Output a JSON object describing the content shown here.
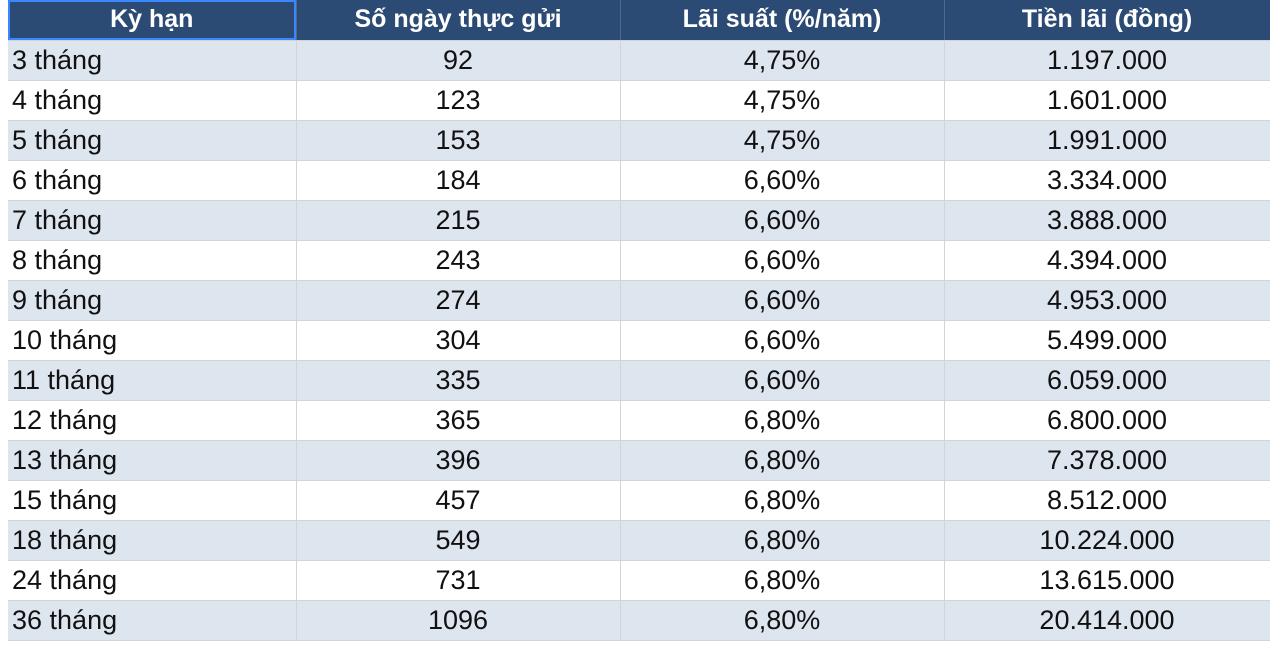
{
  "table": {
    "headers": [
      "Kỳ hạn",
      "Số ngày thực gửi",
      "Lãi suất (%/năm)",
      "Tiền lãi (đồng)"
    ],
    "rows": [
      {
        "term": "3 tháng",
        "days": "92",
        "rate": "4,75%",
        "interest": "1.197.000"
      },
      {
        "term": "4 tháng",
        "days": "123",
        "rate": "4,75%",
        "interest": "1.601.000"
      },
      {
        "term": "5 tháng",
        "days": "153",
        "rate": "4,75%",
        "interest": "1.991.000"
      },
      {
        "term": "6 tháng",
        "days": "184",
        "rate": "6,60%",
        "interest": "3.334.000"
      },
      {
        "term": "7 tháng",
        "days": "215",
        "rate": "6,60%",
        "interest": "3.888.000"
      },
      {
        "term": "8 tháng",
        "days": "243",
        "rate": "6,60%",
        "interest": "4.394.000"
      },
      {
        "term": "9 tháng",
        "days": "274",
        "rate": "6,60%",
        "interest": "4.953.000"
      },
      {
        "term": "10 tháng",
        "days": "304",
        "rate": "6,60%",
        "interest": "5.499.000"
      },
      {
        "term": "11 tháng",
        "days": "335",
        "rate": "6,60%",
        "interest": "6.059.000"
      },
      {
        "term": "12 tháng",
        "days": "365",
        "rate": "6,80%",
        "interest": "6.800.000"
      },
      {
        "term": "13 tháng",
        "days": "396",
        "rate": "6,80%",
        "interest": "7.378.000"
      },
      {
        "term": "15 tháng",
        "days": "457",
        "rate": "6,80%",
        "interest": "8.512.000"
      },
      {
        "term": "18 tháng",
        "days": "549",
        "rate": "6,80%",
        "interest": "10.224.000"
      },
      {
        "term": "24 tháng",
        "days": "731",
        "rate": "6,80%",
        "interest": "13.615.000"
      },
      {
        "term": "36 tháng",
        "days": "1096",
        "rate": "6,80%",
        "interest": "20.414.000"
      }
    ]
  },
  "colors": {
    "header_bg": "#2b4a74",
    "header_text": "#ffffff",
    "band_row": "#dde5ef",
    "plain_row": "#ffffff",
    "selection": "#3a86ff"
  }
}
